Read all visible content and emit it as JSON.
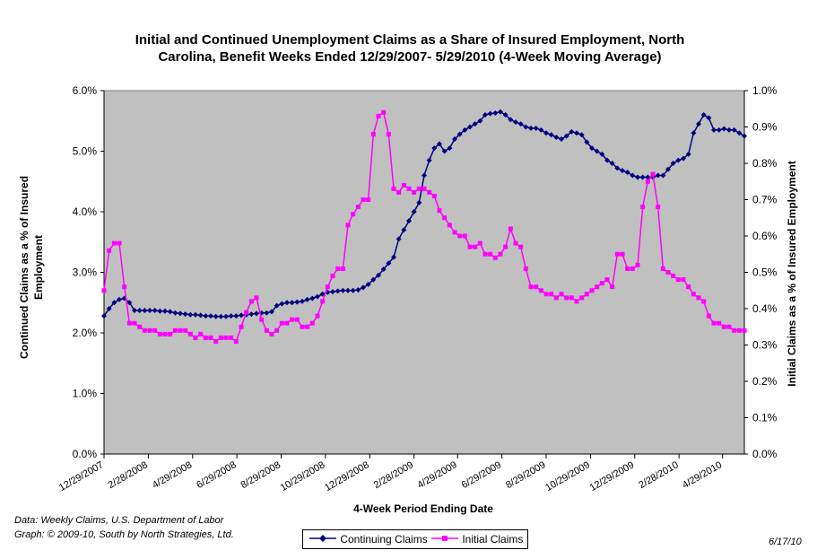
{
  "chart_data": {
    "type": "line",
    "title_lines": [
      "Initial and Continued Unemployment Claims as a Share of Insured Employment, North",
      "Carolina, Benefit Weeks Ended 12/29/2007- 5/29/2010 (4-Week Moving Average)"
    ],
    "xlabel": "4-Week Period Ending Date",
    "ylabel_left_lines": [
      "Continued Claims as a % of Insured",
      "Employment"
    ],
    "ylabel_right": "Initial Claims as a % of Insured Employment",
    "ylim_left": [
      0,
      6
    ],
    "ylim_right": [
      0,
      1
    ],
    "y_ticks_left": [
      "0.0%",
      "1.0%",
      "2.0%",
      "3.0%",
      "4.0%",
      "5.0%",
      "6.0%"
    ],
    "y_ticks_right": [
      "0.0%",
      "0.1%",
      "0.2%",
      "0.3%",
      "0.4%",
      "0.5%",
      "0.6%",
      "0.7%",
      "0.8%",
      "0.9%",
      "1.0%"
    ],
    "x_tick_labels": [
      "12/29/2007",
      "2/28/2008",
      "4/29/2008",
      "6/29/2008",
      "8/29/2008",
      "10/29/2008",
      "12/29/2008",
      "2/28/2009",
      "4/29/2009",
      "6/29/2009",
      "8/29/2009",
      "10/29/2009",
      "12/29/2009",
      "2/28/2010",
      "4/29/2010"
    ],
    "x_start": "12/29/2007",
    "x_end": "5/29/2010",
    "week_count": 127,
    "plot_background": "#c0c0c0",
    "grid": false,
    "legend_position": "bottom-center",
    "series": [
      {
        "name": "Continuing Claims",
        "axis": "left",
        "color": "#000080",
        "marker": "diamond",
        "values": [
          2.28,
          2.4,
          2.5,
          2.55,
          2.57,
          2.5,
          2.37,
          2.37,
          2.37,
          2.37,
          2.37,
          2.36,
          2.36,
          2.35,
          2.33,
          2.32,
          2.31,
          2.3,
          2.3,
          2.29,
          2.28,
          2.28,
          2.27,
          2.27,
          2.27,
          2.28,
          2.28,
          2.29,
          2.3,
          2.31,
          2.32,
          2.33,
          2.33,
          2.35,
          2.45,
          2.48,
          2.5,
          2.5,
          2.51,
          2.52,
          2.55,
          2.57,
          2.6,
          2.64,
          2.67,
          2.68,
          2.69,
          2.7,
          2.7,
          2.7,
          2.71,
          2.75,
          2.8,
          2.88,
          2.95,
          3.05,
          3.15,
          3.25,
          3.55,
          3.7,
          3.85,
          4.0,
          4.15,
          4.6,
          4.85,
          5.05,
          5.12,
          5.0,
          5.05,
          5.2,
          5.28,
          5.35,
          5.4,
          5.45,
          5.5,
          5.6,
          5.62,
          5.63,
          5.65,
          5.6,
          5.52,
          5.48,
          5.45,
          5.4,
          5.38,
          5.38,
          5.35,
          5.3,
          5.27,
          5.23,
          5.2,
          5.25,
          5.32,
          5.3,
          5.27,
          5.15,
          5.05,
          5.0,
          4.95,
          4.85,
          4.8,
          4.72,
          4.68,
          4.65,
          4.6,
          4.57,
          4.57,
          4.57,
          4.57,
          4.6,
          4.6,
          4.7,
          4.8,
          4.85,
          4.88,
          4.95,
          5.3,
          5.45,
          5.6,
          5.55,
          5.35,
          5.35,
          5.37,
          5.35,
          5.35,
          5.3,
          5.25
        ]
      },
      {
        "name": "Initial Claims",
        "axis": "right",
        "color": "#ff00ff",
        "marker": "square",
        "values": [
          0.45,
          0.56,
          0.58,
          0.58,
          0.46,
          0.36,
          0.36,
          0.35,
          0.34,
          0.34,
          0.34,
          0.33,
          0.33,
          0.33,
          0.34,
          0.34,
          0.34,
          0.33,
          0.32,
          0.33,
          0.32,
          0.32,
          0.31,
          0.32,
          0.32,
          0.32,
          0.31,
          0.35,
          0.39,
          0.42,
          0.43,
          0.37,
          0.34,
          0.33,
          0.34,
          0.36,
          0.36,
          0.37,
          0.37,
          0.35,
          0.35,
          0.36,
          0.38,
          0.42,
          0.46,
          0.49,
          0.51,
          0.51,
          0.63,
          0.66,
          0.68,
          0.7,
          0.7,
          0.88,
          0.93,
          0.94,
          0.88,
          0.73,
          0.72,
          0.74,
          0.73,
          0.72,
          0.73,
          0.73,
          0.72,
          0.71,
          0.67,
          0.65,
          0.63,
          0.61,
          0.6,
          0.6,
          0.57,
          0.57,
          0.58,
          0.55,
          0.55,
          0.54,
          0.55,
          0.57,
          0.62,
          0.58,
          0.57,
          0.51,
          0.46,
          0.46,
          0.45,
          0.44,
          0.44,
          0.43,
          0.44,
          0.43,
          0.43,
          0.42,
          0.43,
          0.44,
          0.45,
          0.46,
          0.47,
          0.48,
          0.46,
          0.55,
          0.55,
          0.51,
          0.51,
          0.52,
          0.68,
          0.75,
          0.77,
          0.68,
          0.51,
          0.5,
          0.49,
          0.48,
          0.48,
          0.46,
          0.44,
          0.43,
          0.42,
          0.38,
          0.36,
          0.36,
          0.35,
          0.35,
          0.34,
          0.34,
          0.34
        ]
      }
    ]
  },
  "footer": {
    "source_line1": "Data:  Weekly Claims, U.S. Department of Labor",
    "source_line2": "Graph: © 2009-10, South by North Strategies, Ltd.",
    "date": "6/17/10"
  },
  "legend": {
    "continuing_label": "Continuing Claims",
    "initial_label": "Initial Claims"
  }
}
